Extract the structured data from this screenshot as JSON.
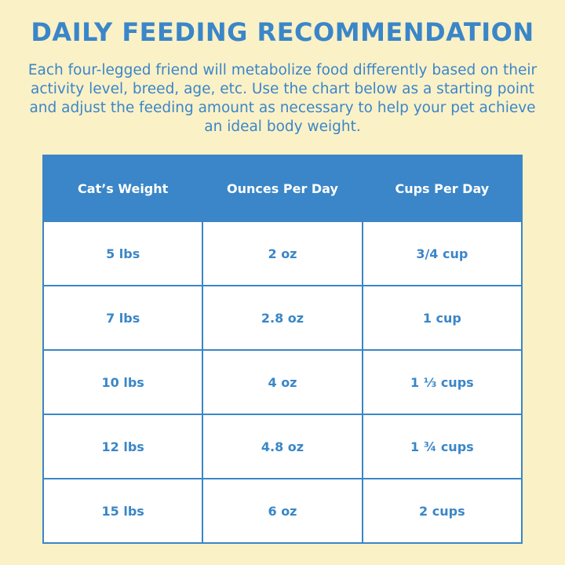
{
  "title": "DAILY FEEDING RECOMMENDATION",
  "intro": "Each four-legged friend will metabolize food differently based on their activity level, breed, age, etc. Use the chart below as a starting point and adjust the feeding amount as necessary to help your pet achieve an ideal body weight.",
  "colors": {
    "background": "#fbf1c7",
    "accent": "#3a86c8",
    "cell_background": "#ffffff"
  },
  "table": {
    "headers": [
      "Cat’s Weight",
      "Ounces Per Day",
      "Cups Per Day"
    ],
    "rows": [
      [
        "5 lbs",
        "2 oz",
        "3/4 cup"
      ],
      [
        "7 lbs",
        "2.8 oz",
        "1 cup"
      ],
      [
        "10 lbs",
        "4 oz",
        "1 ⅓ cups"
      ],
      [
        "12 lbs",
        "4.8 oz",
        "1 ¾ cups"
      ],
      [
        "15 lbs",
        "6 oz",
        "2 cups"
      ]
    ]
  }
}
